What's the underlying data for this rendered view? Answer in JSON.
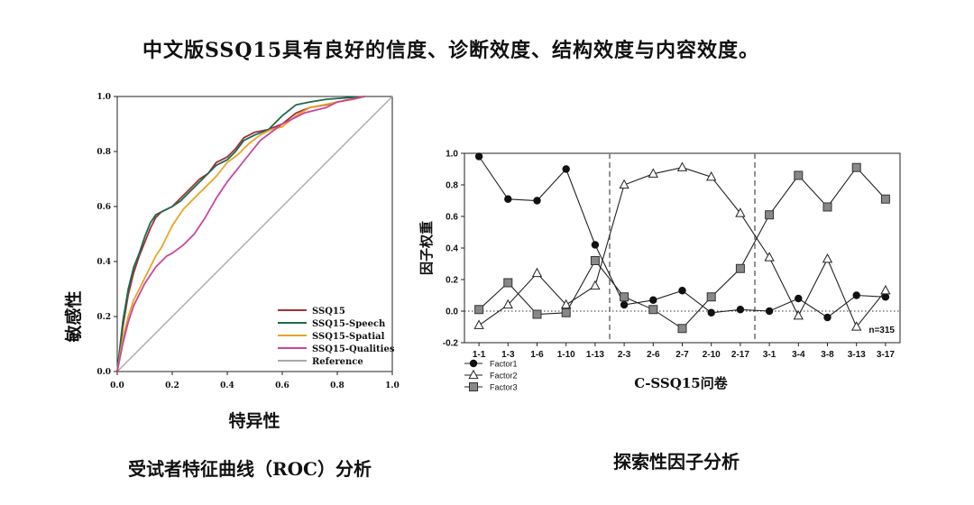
{
  "page_title": "中文版SSQ15具有良好的信度、诊断效度、结构效度与内容效度。",
  "roc_caption": "受试者特征曲线（ROC）分析",
  "efa_caption": "探索性因子分析",
  "chart_data": [
    {
      "type": "line",
      "title": "受试者特征曲线（ROC）分析",
      "xlabel": "特异性",
      "ylabel": "敏感性",
      "xlim": [
        0,
        1
      ],
      "ylim": [
        0,
        1
      ],
      "x_ticks": [
        "0.0",
        "0.2",
        "0.4",
        "0.6",
        "0.8",
        "1.0"
      ],
      "y_ticks": [
        "0.0",
        "0.2",
        "0.4",
        "0.6",
        "0.8",
        "1.0"
      ],
      "legend_position": "bottom-right",
      "series": [
        {
          "name": "SSQ15",
          "color": "#a0303a",
          "points": [
            [
              0,
              0
            ],
            [
              0.02,
              0.16
            ],
            [
              0.04,
              0.28
            ],
            [
              0.06,
              0.36
            ],
            [
              0.08,
              0.42
            ],
            [
              0.1,
              0.47
            ],
            [
              0.12,
              0.52
            ],
            [
              0.14,
              0.56
            ],
            [
              0.16,
              0.58
            ],
            [
              0.18,
              0.59
            ],
            [
              0.2,
              0.6
            ],
            [
              0.23,
              0.63
            ],
            [
              0.26,
              0.66
            ],
            [
              0.3,
              0.7
            ],
            [
              0.33,
              0.72
            ],
            [
              0.36,
              0.76
            ],
            [
              0.4,
              0.78
            ],
            [
              0.43,
              0.81
            ],
            [
              0.46,
              0.85
            ],
            [
              0.5,
              0.87
            ],
            [
              0.55,
              0.88
            ],
            [
              0.6,
              0.9
            ],
            [
              0.65,
              0.94
            ],
            [
              0.7,
              0.96
            ],
            [
              0.76,
              0.97
            ],
            [
              0.8,
              0.98
            ],
            [
              0.85,
              0.99
            ],
            [
              0.9,
              1.0
            ]
          ]
        },
        {
          "name": "SSQ15-Speech",
          "color": "#1e6b4c",
          "points": [
            [
              0,
              0
            ],
            [
              0.02,
              0.18
            ],
            [
              0.04,
              0.3
            ],
            [
              0.06,
              0.38
            ],
            [
              0.08,
              0.43
            ],
            [
              0.1,
              0.49
            ],
            [
              0.12,
              0.54
            ],
            [
              0.14,
              0.57
            ],
            [
              0.16,
              0.58
            ],
            [
              0.18,
              0.59
            ],
            [
              0.2,
              0.6
            ],
            [
              0.23,
              0.62
            ],
            [
              0.26,
              0.65
            ],
            [
              0.3,
              0.69
            ],
            [
              0.33,
              0.72
            ],
            [
              0.36,
              0.75
            ],
            [
              0.4,
              0.77
            ],
            [
              0.43,
              0.8
            ],
            [
              0.46,
              0.84
            ],
            [
              0.5,
              0.86
            ],
            [
              0.55,
              0.88
            ],
            [
              0.6,
              0.93
            ],
            [
              0.65,
              0.97
            ],
            [
              0.7,
              0.98
            ],
            [
              0.76,
              0.99
            ],
            [
              0.9,
              1.0
            ]
          ]
        },
        {
          "name": "SSQ15-Spatial",
          "color": "#e8a428",
          "points": [
            [
              0,
              0
            ],
            [
              0.02,
              0.12
            ],
            [
              0.04,
              0.2
            ],
            [
              0.06,
              0.26
            ],
            [
              0.08,
              0.3
            ],
            [
              0.1,
              0.34
            ],
            [
              0.12,
              0.38
            ],
            [
              0.14,
              0.42
            ],
            [
              0.16,
              0.45
            ],
            [
              0.18,
              0.49
            ],
            [
              0.2,
              0.53
            ],
            [
              0.24,
              0.59
            ],
            [
              0.28,
              0.63
            ],
            [
              0.32,
              0.67
            ],
            [
              0.36,
              0.71
            ],
            [
              0.4,
              0.76
            ],
            [
              0.44,
              0.79
            ],
            [
              0.48,
              0.83
            ],
            [
              0.52,
              0.86
            ],
            [
              0.56,
              0.88
            ],
            [
              0.6,
              0.89
            ],
            [
              0.65,
              0.93
            ],
            [
              0.7,
              0.96
            ],
            [
              0.75,
              0.97
            ],
            [
              0.8,
              0.98
            ],
            [
              0.86,
              0.99
            ],
            [
              0.9,
              1.0
            ]
          ]
        },
        {
          "name": "SSQ15-Qualities",
          "color": "#c9479b",
          "points": [
            [
              0,
              0
            ],
            [
              0.02,
              0.1
            ],
            [
              0.04,
              0.18
            ],
            [
              0.06,
              0.24
            ],
            [
              0.08,
              0.28
            ],
            [
              0.1,
              0.32
            ],
            [
              0.12,
              0.35
            ],
            [
              0.14,
              0.38
            ],
            [
              0.16,
              0.4
            ],
            [
              0.18,
              0.42
            ],
            [
              0.2,
              0.43
            ],
            [
              0.24,
              0.46
            ],
            [
              0.28,
              0.5
            ],
            [
              0.32,
              0.56
            ],
            [
              0.36,
              0.63
            ],
            [
              0.4,
              0.69
            ],
            [
              0.44,
              0.74
            ],
            [
              0.48,
              0.79
            ],
            [
              0.52,
              0.84
            ],
            [
              0.56,
              0.87
            ],
            [
              0.6,
              0.9
            ],
            [
              0.64,
              0.92
            ],
            [
              0.68,
              0.94
            ],
            [
              0.72,
              0.95
            ],
            [
              0.76,
              0.96
            ],
            [
              0.8,
              0.98
            ],
            [
              0.85,
              0.99
            ],
            [
              0.9,
              1.0
            ]
          ]
        },
        {
          "name": "Reference",
          "color": "#aaaaaa",
          "points": [
            [
              0,
              0
            ],
            [
              1,
              1
            ]
          ]
        }
      ]
    },
    {
      "type": "line",
      "title": "探索性因子分析",
      "xlabel": "C-SSQ15问卷",
      "ylabel": "因子权重",
      "ylim": [
        -0.2,
        1.0
      ],
      "y_ticks": [
        "1.0",
        "0.8",
        "0.6",
        "0.4",
        "0.2",
        "0.0",
        "-0.2"
      ],
      "categories": [
        "1-1",
        "1-3",
        "1-6",
        "1-10",
        "1-13",
        "2-3",
        "2-6",
        "2-7",
        "2-10",
        "2-17",
        "3-1",
        "3-4",
        "3-8",
        "3-13",
        "3-17"
      ],
      "group_dividers_after": [
        "1-13",
        "2-17"
      ],
      "annotation": "n=315",
      "legend_position": "bottom-left",
      "series": [
        {
          "name": "Factor1",
          "marker": "circle",
          "values": [
            0.98,
            0.71,
            0.7,
            0.9,
            0.42,
            0.04,
            0.07,
            0.13,
            -0.01,
            0.01,
            0.0,
            0.08,
            -0.04,
            0.1,
            0.09
          ]
        },
        {
          "name": "Factor2",
          "marker": "triangle",
          "values": [
            -0.09,
            0.04,
            0.24,
            0.04,
            0.16,
            0.8,
            0.87,
            0.91,
            0.85,
            0.62,
            0.34,
            -0.03,
            0.33,
            -0.1,
            0.13
          ]
        },
        {
          "name": "Factor3",
          "marker": "square",
          "values": [
            0.01,
            0.18,
            -0.02,
            -0.01,
            0.32,
            0.09,
            0.01,
            -0.11,
            0.09,
            0.27,
            0.61,
            0.86,
            0.66,
            0.91,
            0.71
          ]
        }
      ]
    }
  ]
}
